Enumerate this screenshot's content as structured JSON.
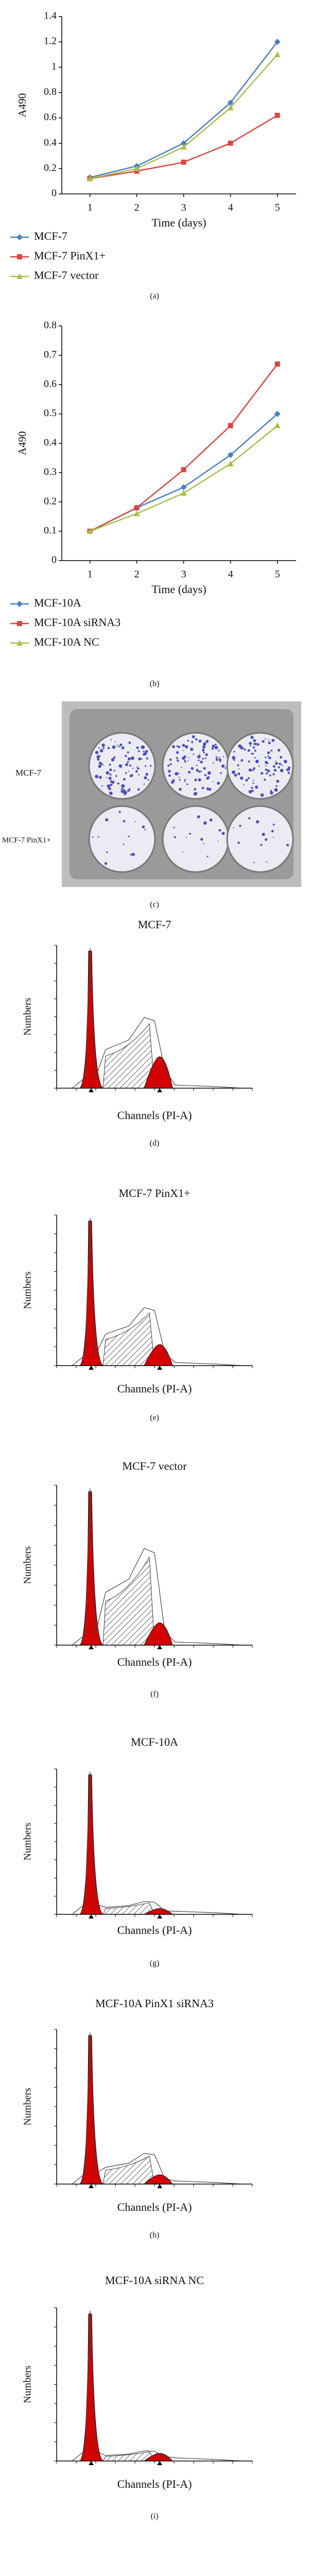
{
  "chart_data": [
    {
      "type": "line",
      "ylabel": "A490",
      "xlabel": "Time (days)",
      "caption": "(a)",
      "x": [
        1,
        2,
        3,
        4,
        5
      ],
      "xlim": [
        0.4,
        5.4
      ],
      "xticks": [
        1,
        2,
        3,
        4,
        5
      ],
      "ylim": [
        0,
        1.4
      ],
      "yticks": [
        0,
        0.2,
        0.4,
        0.6,
        0.8,
        1,
        1.2,
        1.4
      ],
      "series": [
        {
          "name": "MCF-7",
          "color": "#4a7fc1",
          "marker": "diamond",
          "values": [
            0.13,
            0.22,
            0.4,
            0.72,
            1.2
          ]
        },
        {
          "name": "MCF-7 PinX1+",
          "color": "#d9473f",
          "marker": "square",
          "values": [
            0.12,
            0.18,
            0.25,
            0.4,
            0.62
          ]
        },
        {
          "name": "MCF-7 vector",
          "color": "#a5c04a",
          "marker": "triangle",
          "values": [
            0.12,
            0.2,
            0.37,
            0.68,
            1.1
          ]
        }
      ]
    },
    {
      "type": "line",
      "ylabel": "A490",
      "xlabel": "Time (days)",
      "caption": "(b)",
      "x": [
        1,
        2,
        3,
        4,
        5
      ],
      "xlim": [
        0.4,
        5.4
      ],
      "xticks": [
        1,
        2,
        3,
        4,
        5
      ],
      "ylim": [
        0,
        0.8
      ],
      "yticks": [
        0,
        0.1,
        0.2,
        0.3,
        0.4,
        0.5,
        0.6,
        0.7,
        0.8
      ],
      "series": [
        {
          "name": "MCF-10A",
          "color": "#4a7fc1",
          "marker": "diamond",
          "values": [
            0.1,
            0.18,
            0.25,
            0.36,
            0.5
          ]
        },
        {
          "name": "MCF-10A siRNA3",
          "color": "#d9473f",
          "marker": "square",
          "values": [
            0.1,
            0.18,
            0.31,
            0.46,
            0.67
          ]
        },
        {
          "name": "MCF-10A NC",
          "color": "#a5c04a",
          "marker": "triangle",
          "values": [
            0.1,
            0.16,
            0.23,
            0.33,
            0.46
          ]
        }
      ]
    }
  ],
  "colony_panel": {
    "row_labels": [
      "MCF-7",
      "MCF-7 PinX1+"
    ],
    "caption": "(c)"
  },
  "cell_cycle_panels": [
    {
      "title": "MCF-7",
      "y_label": "Numbers",
      "x_label": "Channels (PI-A)",
      "caption": "(d)"
    },
    {
      "title": "MCF-7 PinX1+",
      "y_label": "Numbers",
      "x_label": "Channels (PI-A)",
      "caption": "(e)"
    },
    {
      "title": "MCF-7 vector",
      "y_label": "Numbers",
      "x_label": "Channels (PI-A)",
      "caption": "(f)"
    },
    {
      "title": "MCF-10A",
      "y_label": "Numbers",
      "x_label": "Channels (PI-A)",
      "caption": "(g)"
    },
    {
      "title": "MCF-10A PinX1 siRNA3",
      "y_label": "Numbers",
      "x_label": "Channels (PI-A)",
      "caption": "(h)"
    },
    {
      "title": "MCF-10A siRNA NC",
      "y_label": "Numbers",
      "x_label": "Channels (PI-A)",
      "caption": "(i)"
    }
  ]
}
